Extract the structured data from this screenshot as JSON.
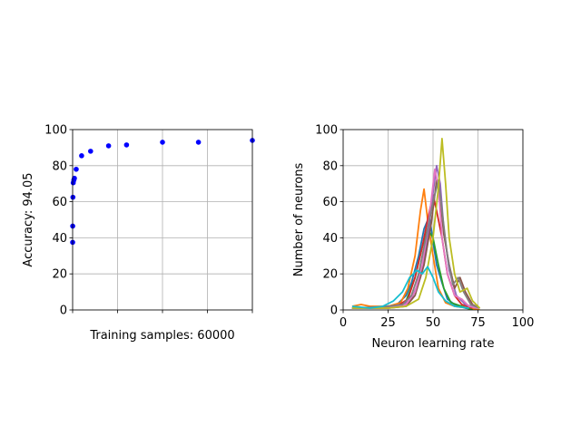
{
  "chart_data": [
    {
      "type": "scatter",
      "xlabel": "Training samples: 60000",
      "ylabel": "Accuracy: 94.05",
      "xlim": [
        0,
        60000
      ],
      "ylim": [
        0,
        100
      ],
      "yticks": [
        0,
        20,
        40,
        60,
        80,
        100
      ],
      "xticks": [
        0,
        15000,
        30000,
        45000,
        60000
      ],
      "show_xtick_labels": false,
      "grid": true,
      "marker_color": "#0000ff",
      "points": [
        {
          "x": 10,
          "y": 37.5
        },
        {
          "x": 30,
          "y": 46.5
        },
        {
          "x": 100,
          "y": 62.5
        },
        {
          "x": 200,
          "y": 70.5
        },
        {
          "x": 400,
          "y": 72
        },
        {
          "x": 600,
          "y": 73
        },
        {
          "x": 1200,
          "y": 78
        },
        {
          "x": 3000,
          "y": 85.5
        },
        {
          "x": 6000,
          "y": 88
        },
        {
          "x": 12000,
          "y": 91
        },
        {
          "x": 18000,
          "y": 91.5
        },
        {
          "x": 30000,
          "y": 93
        },
        {
          "x": 42000,
          "y": 93
        },
        {
          "x": 60000,
          "y": 94
        }
      ]
    },
    {
      "type": "line",
      "xlabel": "Neuron learning rate",
      "ylabel": "Number of neurons",
      "xlim": [
        0,
        100
      ],
      "ylim": [
        0,
        100
      ],
      "xticks": [
        0,
        25,
        50,
        75,
        100
      ],
      "yticks": [
        0,
        20,
        40,
        60,
        80,
        100
      ],
      "grid": true,
      "series": [
        {
          "color": "#1f77b4",
          "points": [
            [
              5,
              1
            ],
            [
              15,
              1
            ],
            [
              25,
              2
            ],
            [
              30,
              3
            ],
            [
              35,
              8
            ],
            [
              38,
              15
            ],
            [
              42,
              30
            ],
            [
              45,
              45
            ],
            [
              48,
              52
            ],
            [
              50,
              38
            ],
            [
              52,
              25
            ],
            [
              55,
              15
            ],
            [
              58,
              6
            ],
            [
              62,
              3
            ],
            [
              68,
              1
            ],
            [
              75,
              0
            ]
          ]
        },
        {
          "color": "#ff7f0e",
          "points": [
            [
              5,
              2
            ],
            [
              10,
              3
            ],
            [
              15,
              2
            ],
            [
              25,
              2
            ],
            [
              32,
              4
            ],
            [
              36,
              12
            ],
            [
              40,
              30
            ],
            [
              43,
              55
            ],
            [
              45,
              67
            ],
            [
              47,
              50
            ],
            [
              50,
              30
            ],
            [
              53,
              12
            ],
            [
              57,
              4
            ],
            [
              62,
              2
            ],
            [
              70,
              1
            ],
            [
              76,
              0
            ]
          ]
        },
        {
          "color": "#2ca02c",
          "points": [
            [
              5,
              1
            ],
            [
              20,
              1
            ],
            [
              30,
              2
            ],
            [
              35,
              5
            ],
            [
              40,
              18
            ],
            [
              44,
              35
            ],
            [
              47,
              45
            ],
            [
              50,
              40
            ],
            [
              53,
              25
            ],
            [
              56,
              12
            ],
            [
              60,
              4
            ],
            [
              66,
              2
            ],
            [
              72,
              0
            ]
          ]
        },
        {
          "color": "#d62728",
          "points": [
            [
              5,
              1
            ],
            [
              20,
              1
            ],
            [
              30,
              2
            ],
            [
              36,
              6
            ],
            [
              40,
              18
            ],
            [
              44,
              35
            ],
            [
              47,
              50
            ],
            [
              50,
              64
            ],
            [
              52,
              55
            ],
            [
              55,
              40
            ],
            [
              58,
              20
            ],
            [
              62,
              8
            ],
            [
              66,
              3
            ],
            [
              72,
              1
            ]
          ]
        },
        {
          "color": "#9467bd",
          "points": [
            [
              5,
              1
            ],
            [
              20,
              1
            ],
            [
              32,
              2
            ],
            [
              38,
              6
            ],
            [
              43,
              18
            ],
            [
              47,
              40
            ],
            [
              50,
              65
            ],
            [
              52,
              80
            ],
            [
              54,
              70
            ],
            [
              56,
              45
            ],
            [
              59,
              22
            ],
            [
              63,
              8
            ],
            [
              68,
              3
            ],
            [
              74,
              1
            ]
          ]
        },
        {
          "color": "#8c564b",
          "points": [
            [
              5,
              1
            ],
            [
              25,
              1
            ],
            [
              35,
              2
            ],
            [
              40,
              8
            ],
            [
              45,
              25
            ],
            [
              49,
              48
            ],
            [
              52,
              72
            ],
            [
              54,
              62
            ],
            [
              56,
              42
            ],
            [
              59,
              25
            ],
            [
              62,
              12
            ],
            [
              65,
              18
            ],
            [
              68,
              10
            ],
            [
              72,
              3
            ],
            [
              76,
              1
            ]
          ]
        },
        {
          "color": "#e377c2",
          "points": [
            [
              5,
              1
            ],
            [
              25,
              1
            ],
            [
              35,
              3
            ],
            [
              40,
              10
            ],
            [
              44,
              25
            ],
            [
              48,
              52
            ],
            [
              51,
              78
            ],
            [
              53,
              68
            ],
            [
              55,
              40
            ],
            [
              58,
              20
            ],
            [
              62,
              8
            ],
            [
              66,
              6
            ],
            [
              70,
              2
            ],
            [
              75,
              1
            ]
          ]
        },
        {
          "color": "#7f7f7f",
          "points": [
            [
              5,
              1
            ],
            [
              25,
              2
            ],
            [
              33,
              3
            ],
            [
              38,
              8
            ],
            [
              42,
              20
            ],
            [
              46,
              40
            ],
            [
              50,
              60
            ],
            [
              53,
              72
            ],
            [
              55,
              55
            ],
            [
              58,
              30
            ],
            [
              61,
              14
            ],
            [
              64,
              18
            ],
            [
              67,
              10
            ],
            [
              71,
              3
            ],
            [
              76,
              1
            ]
          ]
        },
        {
          "color": "#bcbd22",
          "points": [
            [
              5,
              1
            ],
            [
              25,
              1
            ],
            [
              35,
              2
            ],
            [
              42,
              6
            ],
            [
              46,
              18
            ],
            [
              50,
              40
            ],
            [
              53,
              68
            ],
            [
              55,
              95
            ],
            [
              57,
              70
            ],
            [
              59,
              40
            ],
            [
              62,
              20
            ],
            [
              65,
              10
            ],
            [
              69,
              12
            ],
            [
              72,
              5
            ],
            [
              76,
              1
            ]
          ]
        },
        {
          "color": "#17becf",
          "points": [
            [
              5,
              2
            ],
            [
              15,
              1
            ],
            [
              22,
              2
            ],
            [
              28,
              5
            ],
            [
              33,
              10
            ],
            [
              37,
              18
            ],
            [
              41,
              22
            ],
            [
              44,
              20
            ],
            [
              47,
              24
            ],
            [
              50,
              18
            ],
            [
              53,
              10
            ],
            [
              57,
              5
            ],
            [
              62,
              2
            ],
            [
              70,
              1
            ]
          ]
        }
      ]
    }
  ]
}
